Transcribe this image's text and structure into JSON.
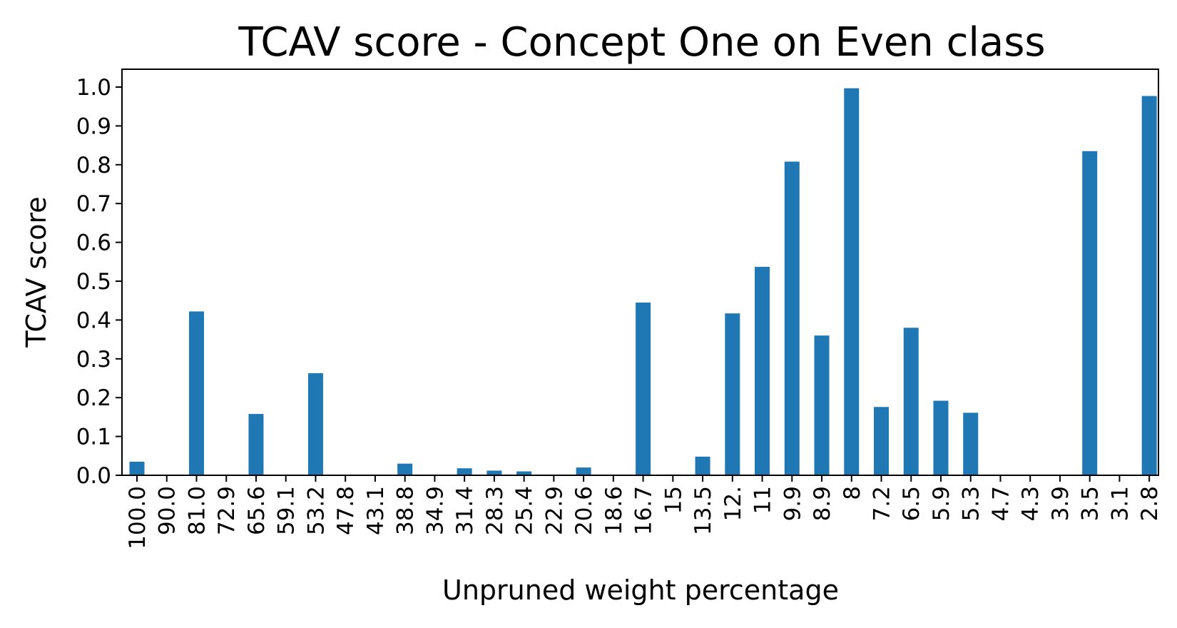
{
  "chart_data": {
    "type": "bar",
    "title": "TCAV score - Concept One on Even class",
    "xlabel": "Unpruned weight percentage",
    "ylabel": "TCAV score",
    "categories": [
      "100.0",
      "90.0",
      "81.0",
      "72.9",
      "65.6",
      "59.1",
      "53.2",
      "47.8",
      "43.1",
      "38.8",
      "34.9",
      "31.4",
      "28.3",
      "25.4",
      "22.9",
      "20.6",
      "18.6",
      "16.7",
      "15",
      "13.5",
      "12.",
      "11",
      "9.9",
      "8.9",
      "8",
      "7.2",
      "6.5",
      "5.9",
      "5.3",
      "4.7",
      "4.3",
      "3.9",
      "3.5",
      "3.1",
      "2.8"
    ],
    "values": [
      0.035,
      0.0,
      0.422,
      0.0,
      0.158,
      0.0,
      0.263,
      0.0,
      0.0,
      0.03,
      0.0,
      0.018,
      0.012,
      0.01,
      0.0,
      0.02,
      0.0,
      0.445,
      0.002,
      0.048,
      0.417,
      0.537,
      0.808,
      0.36,
      0.997,
      0.176,
      0.38,
      0.192,
      0.161,
      0.0,
      0.0,
      0.0,
      0.835,
      0.002,
      0.977
    ],
    "yticks": [
      "0.0",
      "0.1",
      "0.2",
      "0.3",
      "0.4",
      "0.5",
      "0.6",
      "0.7",
      "0.8",
      "0.9",
      "1.0"
    ],
    "ylim": [
      0,
      1.046
    ],
    "grid": false,
    "legend": "none",
    "bar_color": "#1f77b4"
  }
}
